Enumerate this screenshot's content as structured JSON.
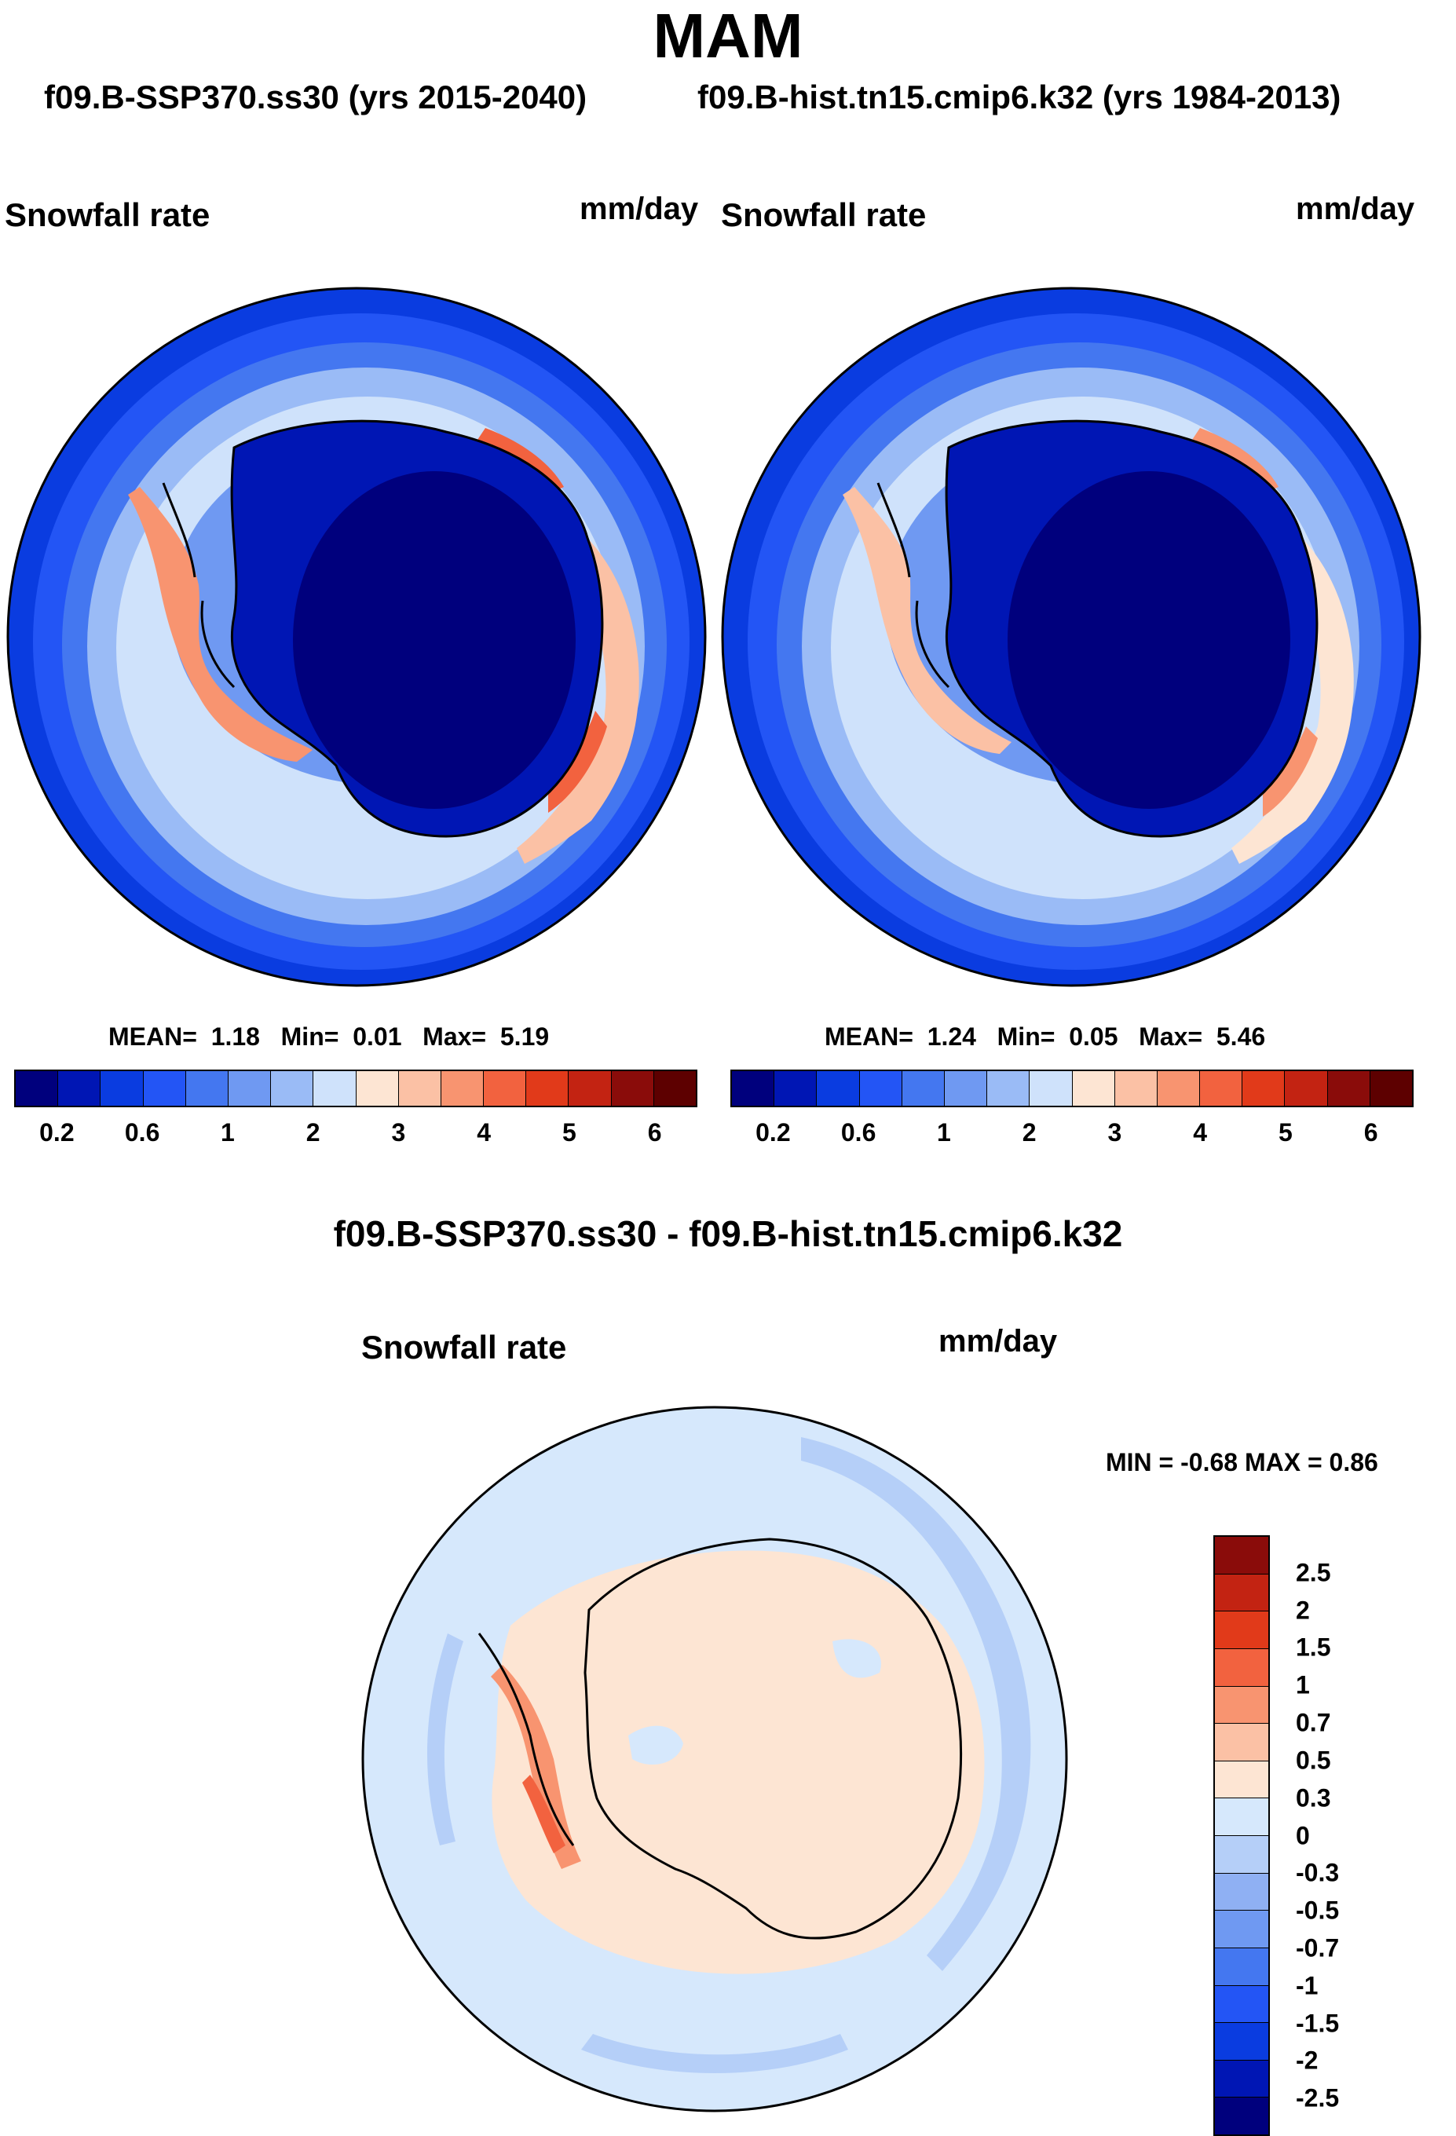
{
  "chart_data": [
    {
      "type": "heatmap",
      "projection": "south-polar-stereographic",
      "title": "f09.B-SSP370.ss30 (yrs 2015-2040)",
      "variable": "Snowfall rate",
      "units": "mm/day",
      "mean": "1.18",
      "min": "0.01",
      "max": "5.19",
      "levels": [
        0.2,
        0.4,
        0.6,
        0.8,
        1,
        1.5,
        2,
        2.5,
        3,
        3.5,
        4,
        4.5,
        5,
        5.5,
        6
      ],
      "tick_labels": [
        "0.2",
        "0.6",
        "1",
        "2",
        "3",
        "4",
        "5",
        "6"
      ],
      "colors": [
        "#00007d",
        "#0016b4",
        "#0a3ce0",
        "#2355f5",
        "#4477f0",
        "#6f99f2",
        "#9abbf6",
        "#cfe2fb",
        "#fde5d3",
        "#fbc1a5",
        "#f89470",
        "#f2623f",
        "#e13a1a",
        "#c32312",
        "#8a0c0a",
        "#5d0000"
      ]
    },
    {
      "type": "heatmap",
      "projection": "south-polar-stereographic",
      "title": "f09.B-hist.tn15.cmip6.k32 (yrs 1984-2013)",
      "variable": "Snowfall rate",
      "units": "mm/day",
      "mean": "1.24",
      "min": "0.05",
      "max": "5.46",
      "levels": [
        0.2,
        0.4,
        0.6,
        0.8,
        1,
        1.5,
        2,
        2.5,
        3,
        3.5,
        4,
        4.5,
        5,
        5.5,
        6
      ],
      "tick_labels": [
        "0.2",
        "0.6",
        "1",
        "2",
        "3",
        "4",
        "5",
        "6"
      ],
      "colors": [
        "#00007d",
        "#0016b4",
        "#0a3ce0",
        "#2355f5",
        "#4477f0",
        "#6f99f2",
        "#9abbf6",
        "#cfe2fb",
        "#fde5d3",
        "#fbc1a5",
        "#f89470",
        "#f2623f",
        "#e13a1a",
        "#c32312",
        "#8a0c0a",
        "#5d0000"
      ]
    },
    {
      "type": "heatmap",
      "projection": "south-polar-stereographic",
      "title": "f09.B-SSP370.ss30 - f09.B-hist.tn15.cmip6.k32",
      "variable": "Snowfall rate",
      "units": "mm/day",
      "min_label": "MIN = -0.68 MAX = 0.86",
      "min": -0.68,
      "max": 0.86,
      "levels": [
        2.5,
        2,
        1.5,
        1,
        0.7,
        0.5,
        0.3,
        0,
        -0.3,
        -0.5,
        -0.7,
        -1,
        -1.5,
        -2,
        -2.5
      ],
      "tick_labels": [
        "2.5",
        "2",
        "1.5",
        "1",
        "0.7",
        "0.5",
        "0.3",
        "0",
        "-0.3",
        "-0.5",
        "-0.7",
        "-1",
        "-1.5",
        "-2",
        "-2.5"
      ],
      "colors": [
        "#8a0c0a",
        "#c32312",
        "#e13a1a",
        "#f2623f",
        "#f89470",
        "#fbc1a5",
        "#fde5d3",
        "#d6e8fc",
        "#b5cff8",
        "#8fb0f3",
        "#6f99f2",
        "#4477f0",
        "#2355f5",
        "#0a3ce0",
        "#0016b4",
        "#00007d"
      ]
    }
  ],
  "header": {
    "season": "MAM"
  }
}
